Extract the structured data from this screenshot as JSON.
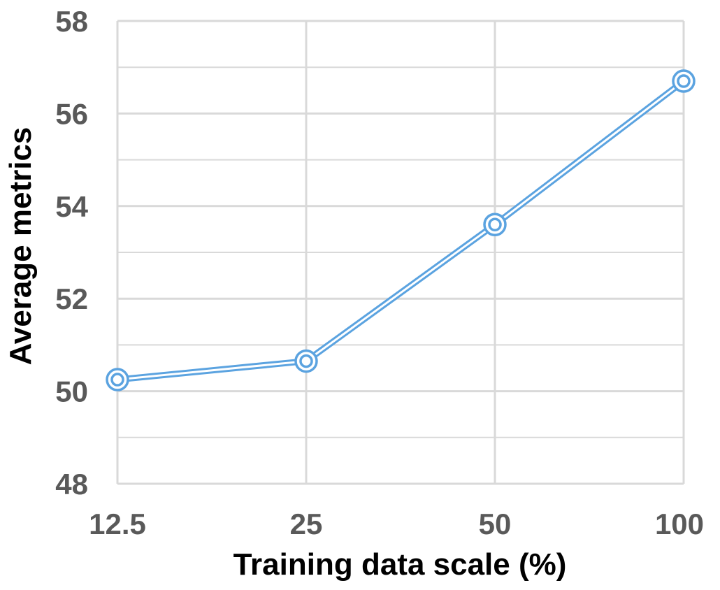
{
  "chart_data": {
    "type": "line",
    "x_scale": "categorical",
    "categories": [
      "12.5",
      "25",
      "50",
      "100"
    ],
    "series": [
      {
        "values": [
          50.25,
          50.65,
          53.6,
          56.7
        ],
        "color": "#5ba3e0",
        "marker": "double-circle"
      }
    ],
    "xlabel": "Training data scale (%)",
    "ylabel": "Average metrics",
    "ylim": [
      48,
      58
    ],
    "yticks": [
      "48",
      "50",
      "52",
      "54",
      "56",
      "58"
    ],
    "grid": "on",
    "grid_color": "#d9d9d9",
    "legend": "none"
  }
}
